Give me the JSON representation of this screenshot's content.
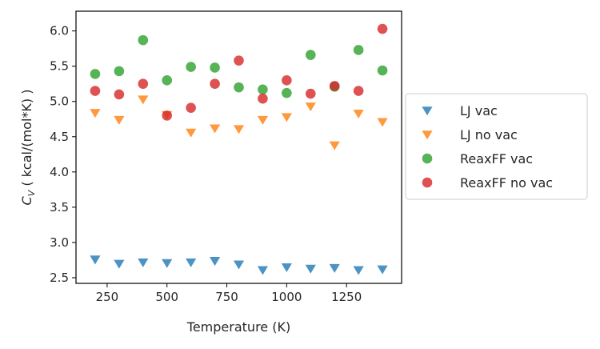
{
  "chart_data": {
    "type": "scatter",
    "title": "",
    "xlabel": "Temperature (K)",
    "ylabel_prefix": "C",
    "ylabel_sub": "V",
    "ylabel_suffix": " ( kcal/(mol*K) )",
    "xlim": [
      120,
      1480
    ],
    "ylim": [
      2.42,
      6.28
    ],
    "xticks": [
      250,
      500,
      750,
      1000,
      1250
    ],
    "yticks": [
      2.5,
      3.0,
      3.5,
      4.0,
      4.5,
      5.0,
      5.5,
      6.0
    ],
    "ytick_labels": [
      "2.5",
      "3.0",
      "3.5",
      "4.0",
      "4.5",
      "5.0",
      "5.5",
      "6.0"
    ],
    "grid": false,
    "legend_position": "right, outside plot",
    "series": [
      {
        "name": "LJ vac",
        "marker": "triangle-down",
        "color": "#1f77b4",
        "x": [
          200,
          300,
          400,
          500,
          600,
          700,
          800,
          900,
          1000,
          1100,
          1200,
          1300,
          1400
        ],
        "y": [
          2.76,
          2.7,
          2.72,
          2.71,
          2.72,
          2.74,
          2.69,
          2.61,
          2.65,
          2.63,
          2.64,
          2.61,
          2.62
        ]
      },
      {
        "name": "LJ no vac",
        "marker": "triangle-down",
        "color": "#ff7f0e",
        "x": [
          200,
          300,
          400,
          500,
          600,
          700,
          800,
          900,
          1000,
          1100,
          1200,
          1300,
          1400
        ],
        "y": [
          4.84,
          4.74,
          5.03,
          4.81,
          4.56,
          4.62,
          4.61,
          4.74,
          4.78,
          4.93,
          4.38,
          4.83,
          4.71
        ]
      },
      {
        "name": "ReaxFF vac",
        "marker": "circle",
        "color": "#2ca02c",
        "x": [
          200,
          300,
          400,
          500,
          600,
          700,
          800,
          900,
          1000,
          1100,
          1200,
          1300,
          1400
        ],
        "y": [
          5.39,
          5.43,
          5.87,
          5.3,
          5.49,
          5.48,
          5.2,
          5.17,
          5.12,
          5.66,
          5.21,
          5.73,
          5.44
        ]
      },
      {
        "name": "ReaxFF no vac",
        "marker": "circle",
        "color": "#d62728",
        "x": [
          200,
          300,
          400,
          500,
          600,
          700,
          800,
          900,
          1000,
          1100,
          1200,
          1300,
          1400
        ],
        "y": [
          5.15,
          5.1,
          5.25,
          4.8,
          4.91,
          5.25,
          5.58,
          5.04,
          5.3,
          5.11,
          5.22,
          5.15,
          6.03
        ]
      }
    ]
  }
}
